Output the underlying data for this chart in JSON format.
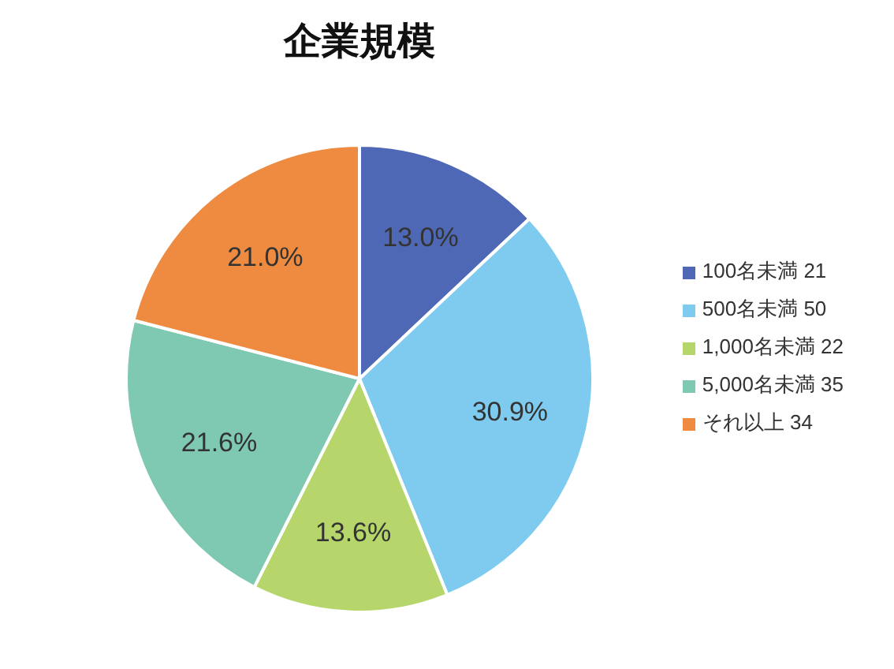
{
  "chart_data": {
    "type": "pie",
    "title": "企業規模",
    "categories": [
      "100名未満 21",
      "500名未満 50",
      "1,000名未満 22",
      "5,000名未満 35",
      "それ以上 34"
    ],
    "values": [
      13.0,
      30.9,
      13.6,
      21.6,
      21.0
    ],
    "value_labels": [
      "13.0%",
      "30.9%",
      "13.6%",
      "21.6%",
      "21.0%"
    ],
    "colors": [
      "#4f68b5",
      "#7ecbef",
      "#b6d56b",
      "#7fc8b2",
      "#ee8b40"
    ],
    "legend": "right"
  }
}
